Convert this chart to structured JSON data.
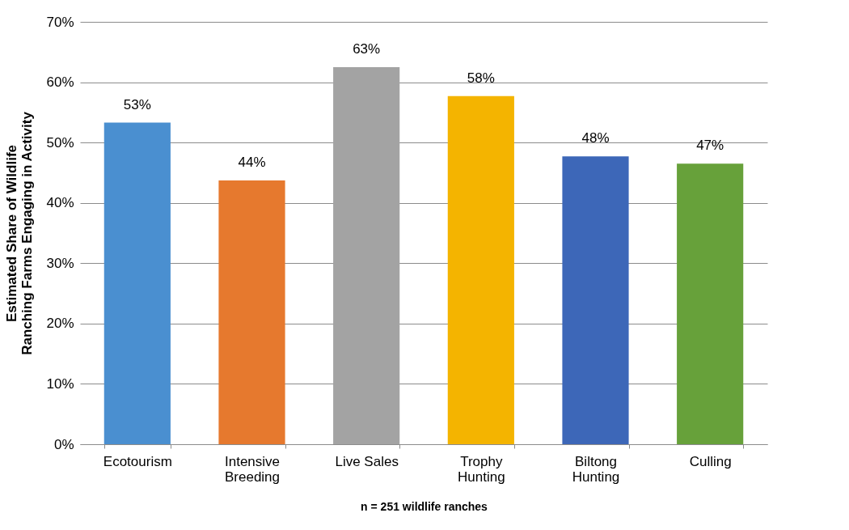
{
  "chart_data": {
    "type": "bar",
    "xlabel": "n = 251 wildlife ranches",
    "ylabel": "Estimated Share of Wildlife Ranching Farms Engaging in Activity",
    "categories": [
      "Ecotourism",
      "Intensive Breeding",
      "Live Sales",
      "Trophy Hunting",
      "Biltong Hunting",
      "Culling"
    ],
    "values": [
      53.3,
      43.7,
      62.5,
      57.7,
      47.7,
      46.5
    ],
    "value_labels": [
      "53%",
      "44%",
      "63%",
      "58%",
      "48%",
      "47%"
    ],
    "colors": [
      "#4a8fd0",
      "#e6792e",
      "#a3a3a3",
      "#f4b400",
      "#3d67b8",
      "#67a13a"
    ],
    "ylim": [
      0,
      70
    ],
    "yticks": [
      {
        "value": 0,
        "label": "0%"
      },
      {
        "value": 10,
        "label": "10%"
      },
      {
        "value": 20,
        "label": "20%"
      },
      {
        "value": 30,
        "label": "30%"
      },
      {
        "value": 40,
        "label": "40%"
      },
      {
        "value": 50,
        "label": "50%"
      },
      {
        "value": 60,
        "label": "60%"
      },
      {
        "value": 70,
        "label": "70%"
      }
    ],
    "grid": "y"
  }
}
